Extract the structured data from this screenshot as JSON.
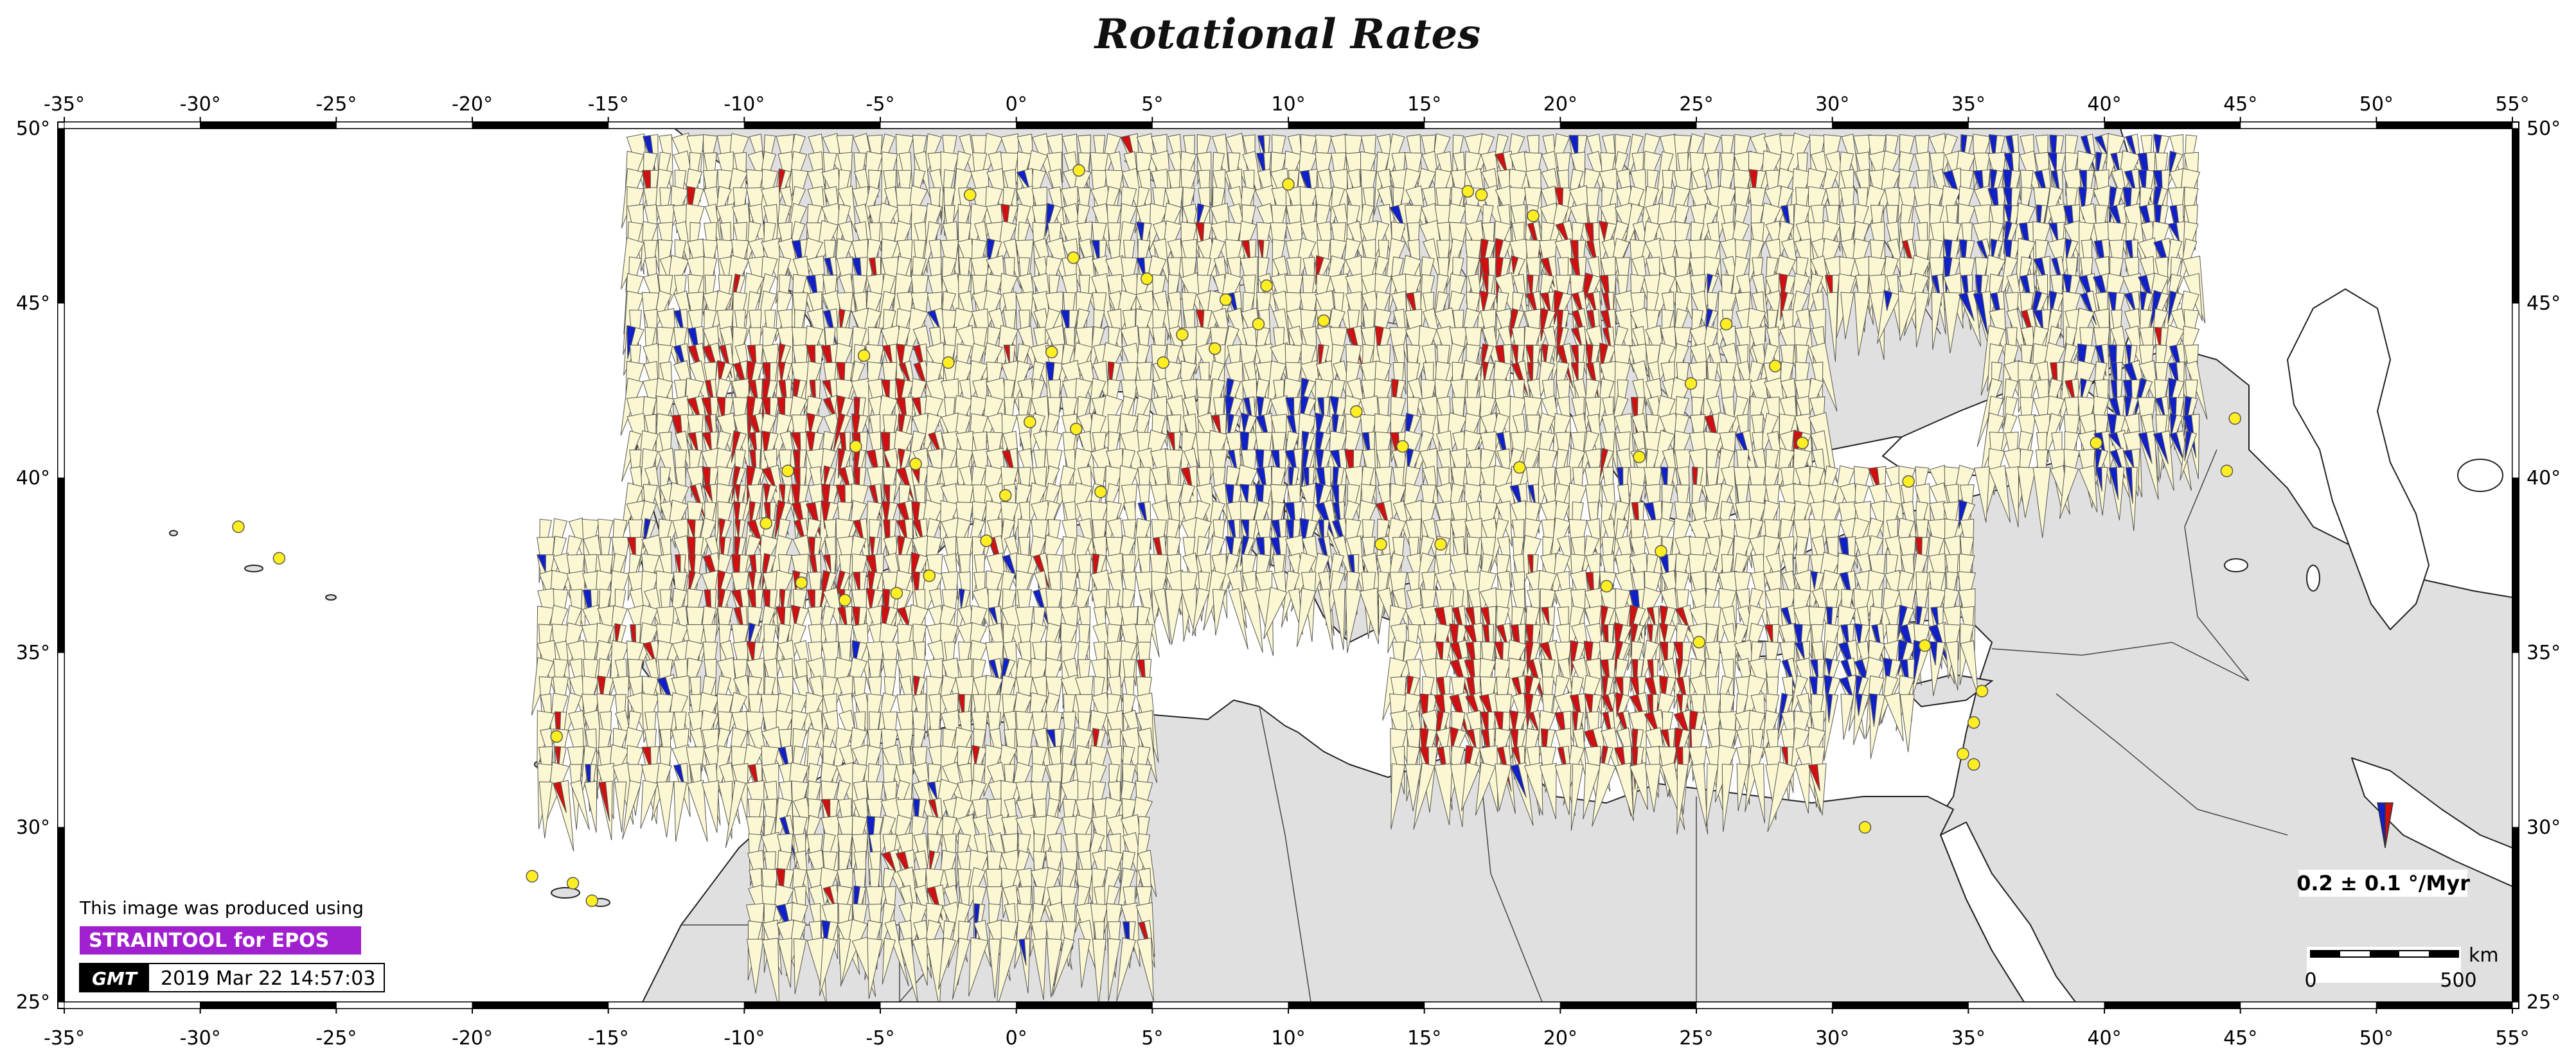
{
  "title": "Rotational Rates",
  "map": {
    "lon_range": [
      -35,
      55
    ],
    "lat_range": [
      25,
      50
    ],
    "lon_ticks": [
      -35,
      -30,
      -25,
      -20,
      -15,
      -10,
      -5,
      0,
      5,
      10,
      15,
      20,
      25,
      30,
      35,
      40,
      45,
      50,
      55
    ],
    "lat_ticks": [
      25,
      30,
      35,
      40,
      45,
      50
    ],
    "degree_symbol": "°",
    "colors": {
      "land": "#e0e0e0",
      "sea": "#ffffff",
      "wedge_fill": "#fbf7d2",
      "wedge_stroke": "#555555",
      "clockwise": "#d01010",
      "counterclockwise": "#1020c8",
      "station": "#ffee22"
    },
    "legend": {
      "value_label": "0.2 ± 0.1 °/Myr"
    },
    "scale_bar": {
      "unit": "km",
      "start_label": "0",
      "end_label": "500"
    },
    "credit": {
      "line1": "This image was produced using",
      "tool": "STRAINTOOL for EPOS",
      "tool_color": "#a020d0",
      "gmt_logo": "GMT",
      "timestamp": "2019 Mar 22 14:57:03"
    }
  }
}
